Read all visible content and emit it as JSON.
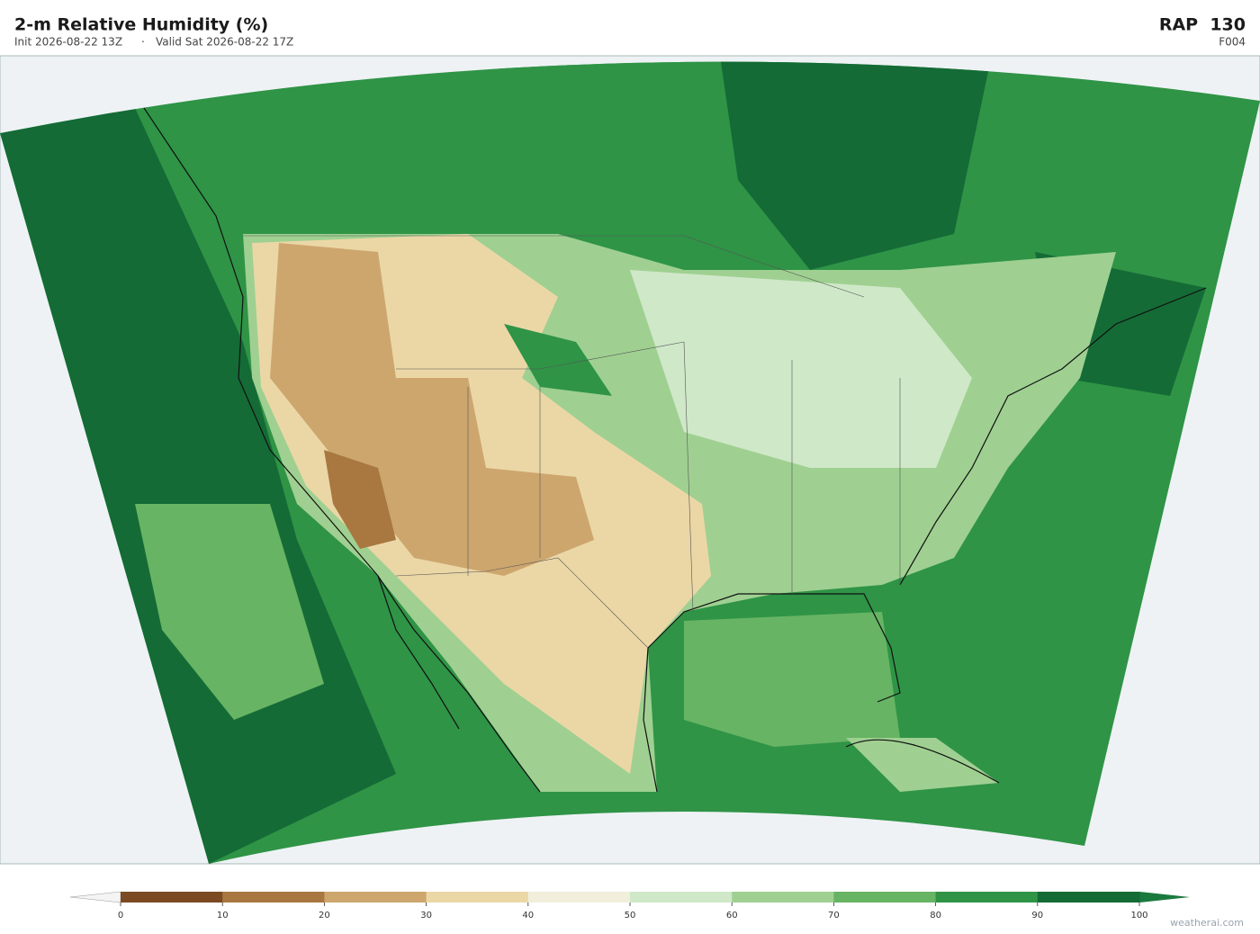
{
  "header": {
    "title": "2-m Relative Humidity  (%)",
    "init": "Init 2026-08-22 13Z",
    "separator": "·",
    "valid": "Valid Sat 2026-08-22 17Z",
    "model": "RAP  130",
    "forecast_hour": "F004"
  },
  "colorbar": {
    "ticks": [
      0,
      10,
      20,
      30,
      40,
      50,
      60,
      70,
      80,
      90,
      100
    ],
    "colors": [
      "#7b4a22",
      "#a87840",
      "#cda66e",
      "#ebd7a6",
      "#f1efdc",
      "#cfe8c8",
      "#9fd091",
      "#67b464",
      "#2f9446",
      "#146b36"
    ],
    "under_color": "#f4f4f4",
    "over_color": "#1a7a3e"
  },
  "footer": {
    "credit": "weatherai.com"
  }
}
